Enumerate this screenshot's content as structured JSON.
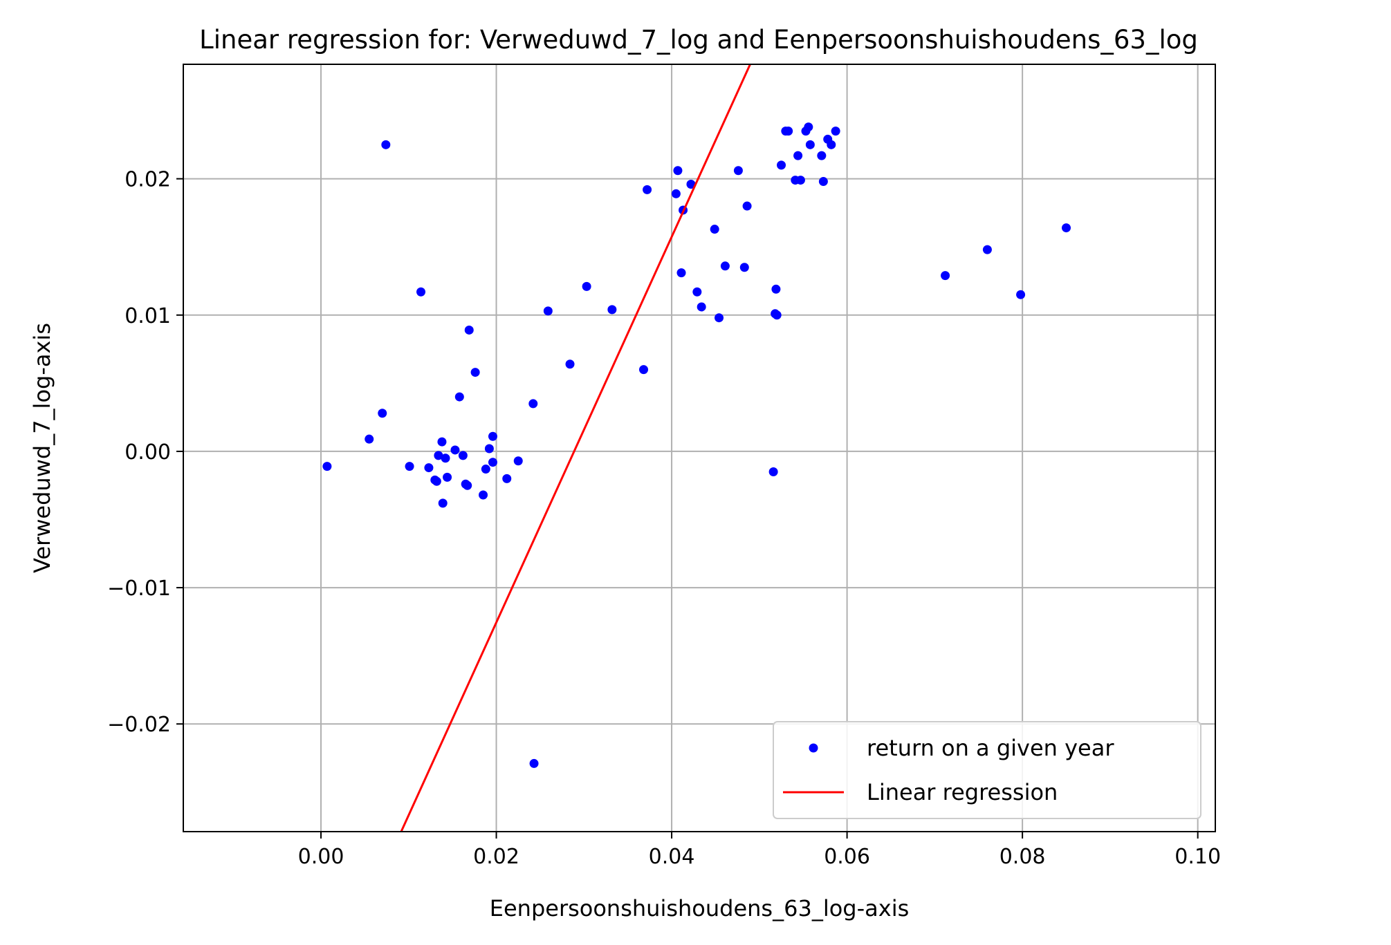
{
  "chart_data": {
    "type": "scatter",
    "title": "Linear regression for: Verweduwd_7_log and Eenpersoonshuishoudens_63_log",
    "xlabel": "Eenpersoonshuishoudens_63_log-axis",
    "ylabel": "Verweduwd_7_log-axis",
    "xlim": [
      -0.0157,
      0.102
    ],
    "ylim": [
      -0.0279,
      0.0284
    ],
    "xticks": [
      0.0,
      0.02,
      0.04,
      0.06,
      0.08,
      0.1
    ],
    "xtick_labels": [
      "0.00",
      "0.02",
      "0.04",
      "0.06",
      "0.08",
      "0.10"
    ],
    "yticks": [
      -0.02,
      -0.01,
      0.0,
      0.01,
      0.02
    ],
    "ytick_labels": [
      "−0.02",
      "−0.01",
      "0.00",
      "0.01",
      "0.02"
    ],
    "grid": true,
    "legend_position": "lower-right",
    "series": [
      {
        "name": "return on a given year",
        "kind": "scatter",
        "color": "#0000ff",
        "points": [
          [
            0.0007,
            -0.0011
          ],
          [
            0.0055,
            0.0009
          ],
          [
            0.007,
            0.0028
          ],
          [
            0.0074,
            0.0225
          ],
          [
            0.0101,
            -0.0011
          ],
          [
            0.0114,
            0.0117
          ],
          [
            0.0123,
            -0.0012
          ],
          [
            0.013,
            -0.0021
          ],
          [
            0.0132,
            -0.0022
          ],
          [
            0.0134,
            -0.0003
          ],
          [
            0.0138,
            0.0007
          ],
          [
            0.0139,
            -0.0038
          ],
          [
            0.0142,
            -0.0005
          ],
          [
            0.0144,
            -0.0019
          ],
          [
            0.0153,
            0.0001
          ],
          [
            0.0158,
            0.004
          ],
          [
            0.0162,
            -0.0003
          ],
          [
            0.0165,
            -0.0024
          ],
          [
            0.0167,
            -0.0025
          ],
          [
            0.0169,
            0.0089
          ],
          [
            0.0176,
            0.0058
          ],
          [
            0.0185,
            -0.0032
          ],
          [
            0.0188,
            -0.0013
          ],
          [
            0.0192,
            0.0002
          ],
          [
            0.0196,
            0.0011
          ],
          [
            0.0196,
            -0.0008
          ],
          [
            0.0212,
            -0.002
          ],
          [
            0.0225,
            -0.0007
          ],
          [
            0.0242,
            0.0035
          ],
          [
            0.0243,
            -0.0229
          ],
          [
            0.0259,
            0.0103
          ],
          [
            0.0284,
            0.0064
          ],
          [
            0.0303,
            0.0121
          ],
          [
            0.0332,
            0.0104
          ],
          [
            0.0368,
            0.006
          ],
          [
            0.0372,
            0.0192
          ],
          [
            0.0405,
            0.0189
          ],
          [
            0.0407,
            0.0206
          ],
          [
            0.0411,
            0.0131
          ],
          [
            0.0413,
            0.0177
          ],
          [
            0.0422,
            0.0196
          ],
          [
            0.0429,
            0.0117
          ],
          [
            0.0434,
            0.0106
          ],
          [
            0.0449,
            0.0163
          ],
          [
            0.0454,
            0.0098
          ],
          [
            0.0461,
            0.0136
          ],
          [
            0.0476,
            0.0206
          ],
          [
            0.0483,
            0.0135
          ],
          [
            0.0486,
            0.018
          ],
          [
            0.0516,
            -0.0015
          ],
          [
            0.0518,
            0.0101
          ],
          [
            0.0519,
            0.0119
          ],
          [
            0.052,
            0.01
          ],
          [
            0.0525,
            0.021
          ],
          [
            0.053,
            0.0235
          ],
          [
            0.0533,
            0.0235
          ],
          [
            0.0541,
            0.0199
          ],
          [
            0.0544,
            0.0217
          ],
          [
            0.0547,
            0.0199
          ],
          [
            0.0553,
            0.0235
          ],
          [
            0.0556,
            0.0238
          ],
          [
            0.0558,
            0.0225
          ],
          [
            0.0571,
            0.0217
          ],
          [
            0.0573,
            0.0198
          ],
          [
            0.0578,
            0.0229
          ],
          [
            0.0582,
            0.0225
          ],
          [
            0.0587,
            0.0235
          ],
          [
            0.0712,
            0.0129
          ],
          [
            0.076,
            0.0148
          ],
          [
            0.0798,
            0.0115
          ],
          [
            0.085,
            0.0164
          ]
        ]
      },
      {
        "name": "Linear regression",
        "kind": "line",
        "color": "#ff0000",
        "points": [
          [
            0.00915,
            -0.0279
          ],
          [
            0.04895,
            0.0284
          ]
        ]
      }
    ]
  }
}
